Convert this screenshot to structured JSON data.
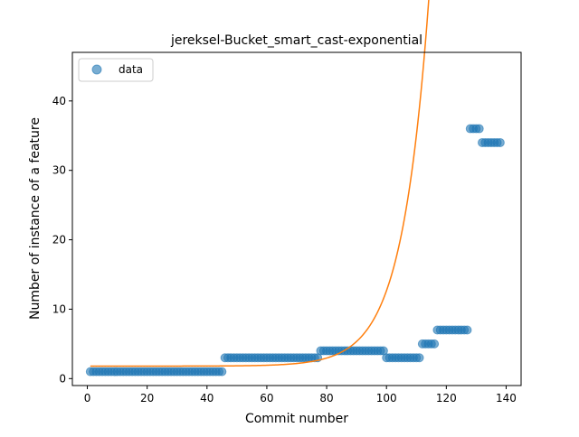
{
  "chart_data": {
    "type": "scatter",
    "title": "jereksel-Bucket_smart_cast-exponential",
    "xlabel": "Commit number",
    "ylabel": "Number of instance of a feature",
    "xlim": [
      -5,
      145
    ],
    "ylim": [
      -1,
      47
    ],
    "xticks": [
      0,
      20,
      40,
      60,
      80,
      100,
      120,
      140
    ],
    "yticks": [
      0,
      10,
      20,
      30,
      40
    ],
    "grid": false,
    "legend": {
      "placement": "top-left",
      "entries": [
        "data"
      ]
    },
    "colors": {
      "data": "#1f77b4",
      "fit": "#ff7f0e"
    },
    "series": [
      {
        "name": "data",
        "kind": "scatter",
        "segments": [
          {
            "x_from": 1,
            "x_to": 45,
            "y": 1
          },
          {
            "x_from": 46,
            "x_to": 77,
            "y": 3
          },
          {
            "x_from": 78,
            "x_to": 99,
            "y": 4
          },
          {
            "x_from": 100,
            "x_to": 111,
            "y": 3
          },
          {
            "x_from": 112,
            "x_to": 116,
            "y": 5
          },
          {
            "x_from": 117,
            "x_to": 127,
            "y": 7
          },
          {
            "x_from": 128,
            "x_to": 131,
            "y": 36
          },
          {
            "x_from": 132,
            "x_to": 138,
            "y": 34
          }
        ]
      },
      {
        "kind": "line",
        "model": "exponential",
        "x_range": [
          1,
          138
        ],
        "params": {
          "a": 1.8,
          "b": 0.00015,
          "c": 0.1119
        }
      }
    ]
  }
}
